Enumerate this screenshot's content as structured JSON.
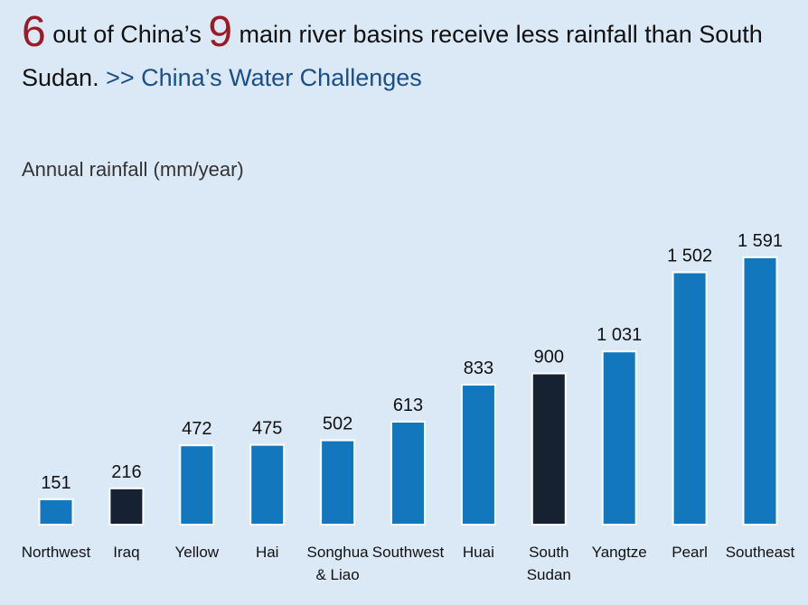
{
  "header": {
    "num1": "6",
    "text1": " out of China’s ",
    "num2": "9",
    "text2": " main river basins receive less rainfall than South Sudan. ",
    "link": ">> China’s Water Challenges"
  },
  "colors": {
    "china_basin": "#1277bd",
    "country": "#162232",
    "background": "#dbe8f6"
  },
  "chart_data": {
    "type": "bar",
    "title": "",
    "subtitle": "Annual rainfall (mm/year)",
    "xlabel": "",
    "ylabel": "Annual rainfall (mm/year)",
    "categories": [
      "Northwest",
      "Iraq",
      "Yellow",
      "Hai",
      "Songhua\n& Liao",
      "Southwest",
      "Huai",
      "South\nSudan",
      "Yangtze",
      "Pearl",
      "Southeast"
    ],
    "values": [
      151,
      216,
      472,
      475,
      502,
      613,
      833,
      900,
      1031,
      1502,
      1591
    ],
    "value_labels": [
      "151",
      "216",
      "472",
      "475",
      "502",
      "613",
      "833",
      "900",
      "1 031",
      "1 502",
      "1 591"
    ],
    "bar_kind": [
      "china",
      "country",
      "china",
      "china",
      "china",
      "china",
      "china",
      "country",
      "china",
      "china",
      "china"
    ],
    "ylim": [
      0,
      1591
    ],
    "grid": false,
    "legend": "none"
  }
}
